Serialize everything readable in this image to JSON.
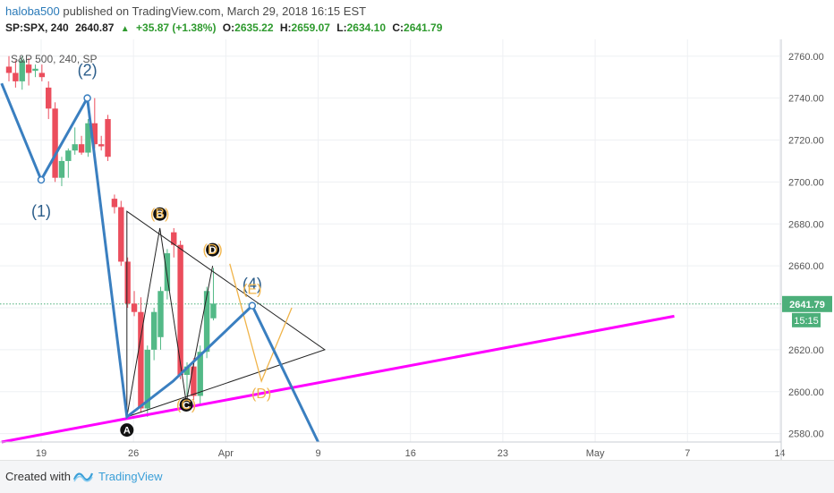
{
  "header": {
    "username": "haloba500",
    "published_text": "published on TradingView.com, March 29, 2018 16:15 EST",
    "symbol": "SP:SPX, 240",
    "last": "2640.87",
    "change": "+35.87 (+1.38%)",
    "o_label": "O:",
    "o_value": "2635.22",
    "h_label": "H:",
    "h_value": "2659.07",
    "l_label": "L:",
    "l_value": "2634.10",
    "c_label": "C:",
    "c_value": "2641.79"
  },
  "footer": {
    "created_with": "Created with",
    "brand": "TradingView"
  },
  "colors": {
    "up": "#53b987",
    "down": "#eb4d5c",
    "magenta": "#ff00ff",
    "blue_wave": "#3a7fc0",
    "orange": "#f0b44a",
    "price_line": "#4caf7a"
  },
  "chart_data": {
    "type": "candlestick",
    "legend_title": "S&P 500, 240, SP",
    "x_ticks": [
      "19",
      "26",
      "Apr",
      "9",
      "16",
      "23",
      "May",
      "7",
      "14"
    ],
    "y_ticks": [
      2580,
      2600,
      2620,
      2640,
      2660,
      2680,
      2700,
      2720,
      2740,
      2760
    ],
    "ylim": [
      2576,
      2768
    ],
    "price_label": "2641.79",
    "time_label": "15:15",
    "candles": [
      {
        "o": 2755,
        "h": 2760,
        "l": 2748,
        "c": 2752
      },
      {
        "o": 2752,
        "h": 2758,
        "l": 2745,
        "c": 2748
      },
      {
        "o": 2748,
        "h": 2760,
        "l": 2744,
        "c": 2758
      },
      {
        "o": 2756,
        "h": 2759,
        "l": 2746,
        "c": 2752
      },
      {
        "o": 2753,
        "h": 2756,
        "l": 2750,
        "c": 2754
      },
      {
        "o": 2752,
        "h": 2756,
        "l": 2748,
        "c": 2750
      },
      {
        "o": 2745,
        "h": 2748,
        "l": 2730,
        "c": 2735
      },
      {
        "o": 2735,
        "h": 2738,
        "l": 2700,
        "c": 2702
      },
      {
        "o": 2702,
        "h": 2712,
        "l": 2698,
        "c": 2710
      },
      {
        "o": 2710,
        "h": 2716,
        "l": 2702,
        "c": 2715
      },
      {
        "o": 2715,
        "h": 2726,
        "l": 2713,
        "c": 2718
      },
      {
        "o": 2718,
        "h": 2722,
        "l": 2713,
        "c": 2714
      },
      {
        "o": 2714,
        "h": 2730,
        "l": 2712,
        "c": 2728
      },
      {
        "o": 2728,
        "h": 2740,
        "l": 2716,
        "c": 2718
      },
      {
        "o": 2718,
        "h": 2722,
        "l": 2715,
        "c": 2717
      },
      {
        "o": 2730,
        "h": 2732,
        "l": 2710,
        "c": 2712
      },
      {
        "o": 2692,
        "h": 2694,
        "l": 2685,
        "c": 2688
      },
      {
        "o": 2688,
        "h": 2691,
        "l": 2660,
        "c": 2662
      },
      {
        "o": 2662,
        "h": 2664,
        "l": 2640,
        "c": 2642
      },
      {
        "o": 2642,
        "h": 2648,
        "l": 2636,
        "c": 2638
      },
      {
        "o": 2638,
        "h": 2645,
        "l": 2590,
        "c": 2592
      },
      {
        "o": 2592,
        "h": 2622,
        "l": 2588,
        "c": 2620
      },
      {
        "o": 2620,
        "h": 2640,
        "l": 2615,
        "c": 2638
      },
      {
        "o": 2626,
        "h": 2650,
        "l": 2620,
        "c": 2648
      },
      {
        "o": 2648,
        "h": 2668,
        "l": 2644,
        "c": 2666
      },
      {
        "o": 2676,
        "h": 2678,
        "l": 2664,
        "c": 2670
      },
      {
        "o": 2670,
        "h": 2672,
        "l": 2606,
        "c": 2608
      },
      {
        "o": 2608,
        "h": 2614,
        "l": 2598,
        "c": 2612
      },
      {
        "o": 2612,
        "h": 2616,
        "l": 2596,
        "c": 2598
      },
      {
        "o": 2598,
        "h": 2622,
        "l": 2594,
        "c": 2619
      },
      {
        "o": 2619,
        "h": 2650,
        "l": 2616,
        "c": 2648
      },
      {
        "o": 2635,
        "h": 2659,
        "l": 2634,
        "c": 2642
      }
    ],
    "annotations": {
      "wave_labels": [
        "(1)",
        "(2)",
        "(4)"
      ],
      "pattern_labels": [
        "A",
        "B",
        "C",
        "D",
        "(B)",
        "(C)",
        "(D)",
        "(E)"
      ]
    }
  }
}
